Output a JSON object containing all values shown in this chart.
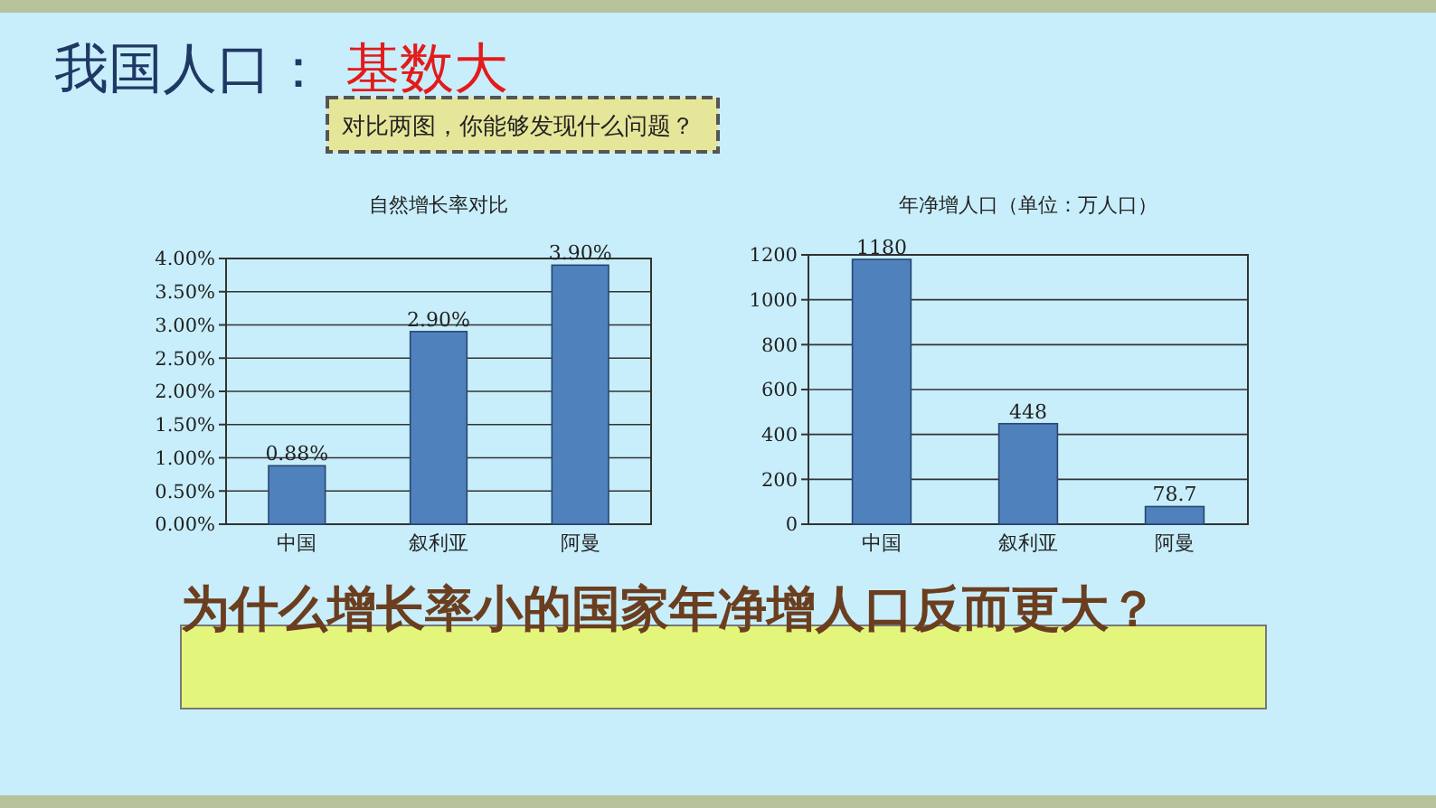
{
  "chart_data": [
    {
      "type": "other",
      "annotations": [
        "我国人口：",
        "基数大",
        "对比两图，你能够发现什么问题？",
        "为什么增长率小的国家年净增人口反而更大？"
      ]
    },
    {
      "type": "bar",
      "title": "自然增长率对比",
      "categories": [
        "中国",
        "叙利亚",
        "阿曼"
      ],
      "values": [
        0.88,
        2.9,
        3.9
      ],
      "value_labels": [
        "0.88%",
        "2.90%",
        "3.90%"
      ],
      "color": "#4f81bd",
      "ylim": [
        0,
        4
      ],
      "yticks": [
        {
          "value": 0,
          "label": "0.00%"
        },
        {
          "value": 0.5,
          "label": "0.50%"
        },
        {
          "value": 1,
          "label": "1.00%"
        },
        {
          "value": 1.5,
          "label": "1.50%"
        },
        {
          "value": 2,
          "label": "2.00%"
        },
        {
          "value": 2.5,
          "label": "2.50%"
        },
        {
          "value": 3,
          "label": "3.00%"
        },
        {
          "value": 3.5,
          "label": "3.50%"
        },
        {
          "value": 4,
          "label": "4.00%"
        }
      ],
      "grid": "y"
    },
    {
      "type": "bar",
      "title": "年净增人口（单位：万人口）",
      "categories": [
        "中国",
        "叙利亚",
        "阿曼"
      ],
      "values": [
        1180,
        448,
        78.7
      ],
      "data_labels": true,
      "color": "#4f81bd",
      "ylim": [
        0,
        1200
      ],
      "yticks": [
        0,
        200,
        400,
        600,
        800,
        1000,
        1200
      ],
      "grid": "y"
    }
  ]
}
